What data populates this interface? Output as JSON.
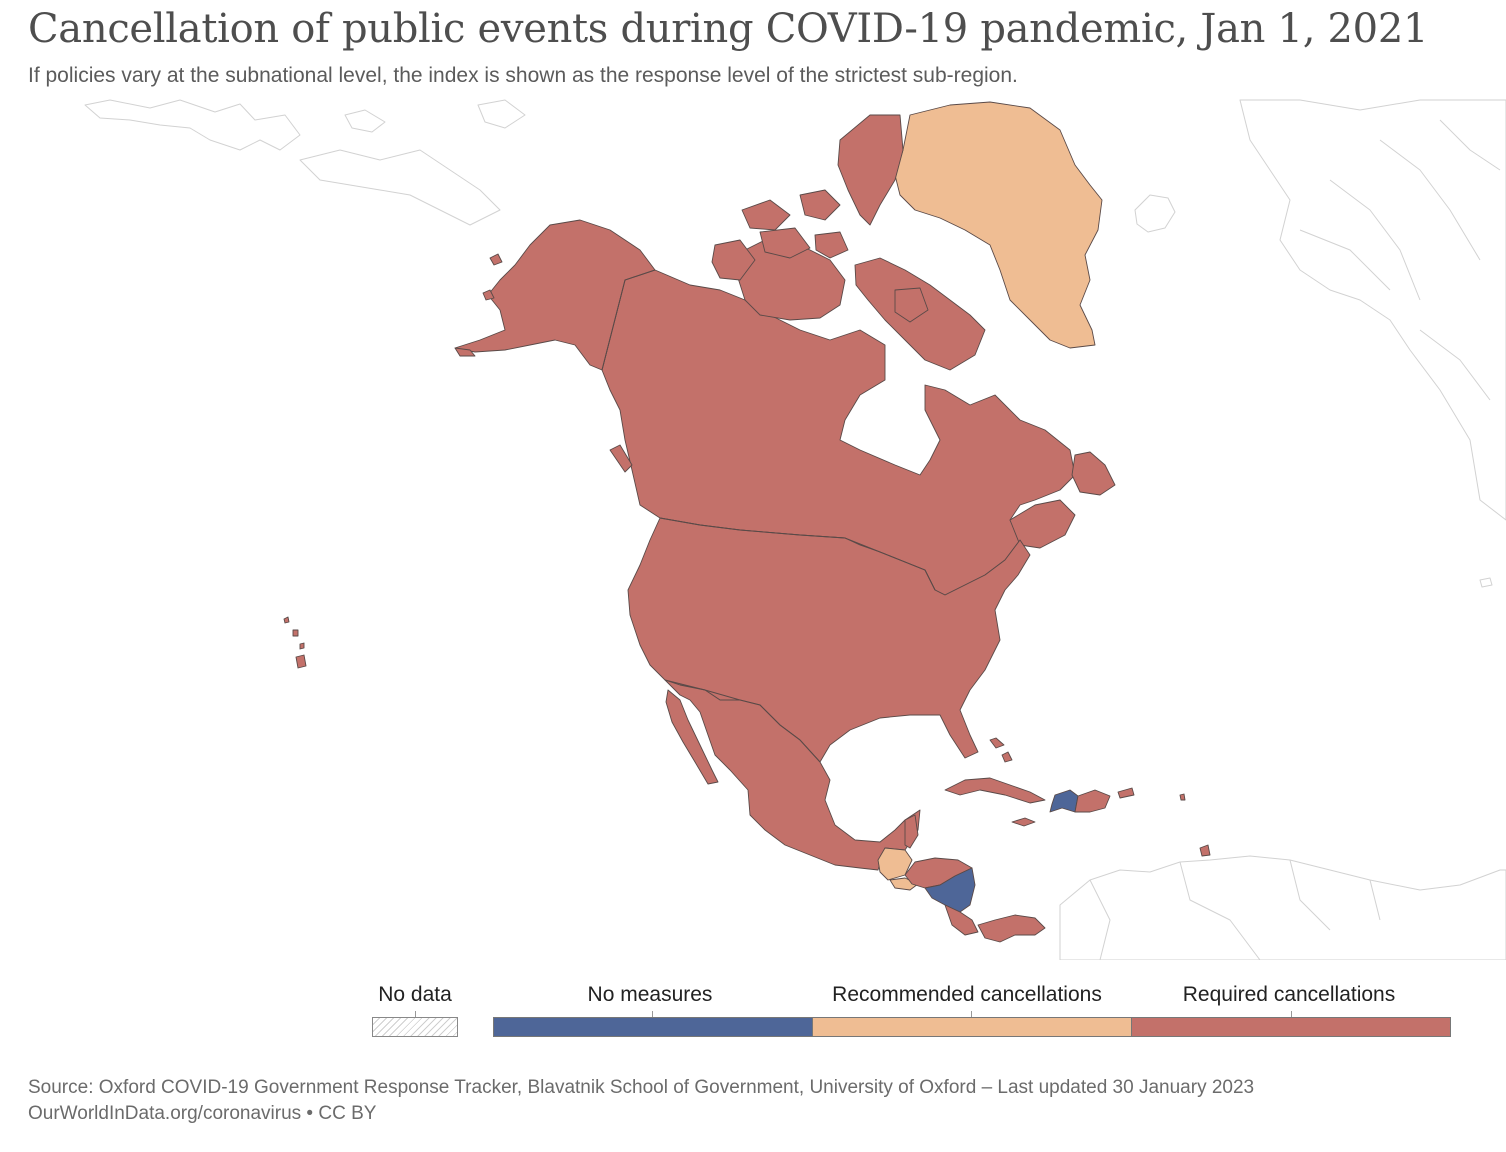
{
  "title": "Cancellation of public events during COVID-19 pandemic, Jan 1, 2021",
  "subtitle": "If policies vary at the subnational level, the index is shown as the response level of the strictest sub-region.",
  "legend": {
    "no_data_label": "No data",
    "categories": [
      {
        "label": "No measures",
        "color": "#4e6698"
      },
      {
        "label": "Recommended cancellations",
        "color": "#efbd93"
      },
      {
        "label": "Required cancellations",
        "color": "#c3716a"
      }
    ]
  },
  "map_data": {
    "regions": [
      {
        "name": "Greenland",
        "category": "Recommended cancellations"
      },
      {
        "name": "Canada",
        "category": "Required cancellations"
      },
      {
        "name": "United States",
        "category": "Required cancellations"
      },
      {
        "name": "Mexico",
        "category": "Required cancellations"
      },
      {
        "name": "Guatemala",
        "category": "Recommended cancellations"
      },
      {
        "name": "El Salvador",
        "category": "Recommended cancellations"
      },
      {
        "name": "Belize",
        "category": "Required cancellations"
      },
      {
        "name": "Honduras",
        "category": "Required cancellations"
      },
      {
        "name": "Nicaragua",
        "category": "No measures"
      },
      {
        "name": "Costa Rica",
        "category": "Required cancellations"
      },
      {
        "name": "Panama",
        "category": "Required cancellations"
      },
      {
        "name": "Cuba",
        "category": "Required cancellations"
      },
      {
        "name": "Jamaica",
        "category": "Required cancellations"
      },
      {
        "name": "Haiti",
        "category": "No measures"
      },
      {
        "name": "Dominican Republic",
        "category": "Required cancellations"
      },
      {
        "name": "Puerto Rico",
        "category": "Required cancellations"
      },
      {
        "name": "Bahamas",
        "category": "Required cancellations"
      },
      {
        "name": "Trinidad and Tobago",
        "category": "Required cancellations"
      },
      {
        "name": "Barbados",
        "category": "Required cancellations"
      }
    ],
    "colors": {
      "no_measures": "#4e6698",
      "recommended": "#efbd93",
      "required": "#c3716a",
      "border": "#5a4a48",
      "context_land": "#ffffff",
      "context_border": "#cfcfcf"
    }
  },
  "source": "Source: Oxford COVID-19 Government Response Tracker, Blavatnik School of Government, University of Oxford – Last updated 30 January 2023",
  "footer": "OurWorldInData.org/coronavirus • CC BY"
}
